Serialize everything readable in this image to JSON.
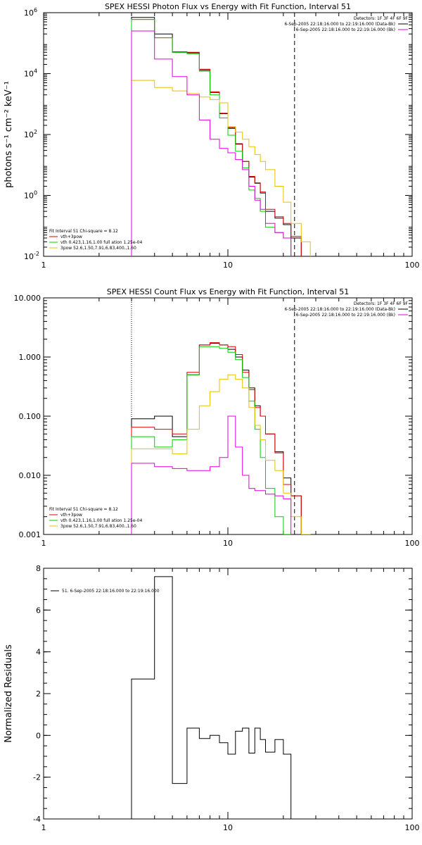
{
  "chart_data": [
    {
      "type": "line",
      "title": "SPEX HESSI Photon Flux vs Energy with Fit Function, Interval 51",
      "xlabel": "",
      "ylabel": "photons s⁻¹ cm⁻² keV⁻¹",
      "x_scale": "log",
      "y_scale": "log",
      "xlim": [
        1,
        100
      ],
      "ylim": [
        0.01,
        1000000
      ],
      "x_ticks": [
        {
          "v": 1,
          "label": "1"
        },
        {
          "v": 10,
          "label": "10"
        },
        {
          "v": 100,
          "label": "100"
        }
      ],
      "y_ticks": [
        {
          "v": 0.01,
          "label": "10",
          "sup": "-2"
        },
        {
          "v": 1,
          "label": "10",
          "sup": "0"
        },
        {
          "v": 100,
          "label": "10",
          "sup": "2"
        },
        {
          "v": 10000,
          "label": "10",
          "sup": "4"
        },
        {
          "v": 1000000,
          "label": "10",
          "sup": "6"
        }
      ],
      "vlines": [
        {
          "x": 3.0,
          "style": "dotted",
          "color": "#000000"
        },
        {
          "x": 23.0,
          "style": "dashed",
          "color": "#000000"
        }
      ],
      "series": [
        {
          "name": "data",
          "color": "#000000",
          "edges": [
            3,
            4,
            5,
            6,
            7,
            8,
            9,
            10,
            11,
            12,
            13,
            14,
            15,
            16,
            18,
            20,
            22,
            25
          ],
          "values": [
            700000,
            200000,
            50000,
            48000,
            13000,
            2400,
            480,
            160,
            48,
            13,
            4,
            2.5,
            1.2,
            0.3,
            0.18,
            0.11,
            0.04
          ]
        },
        {
          "name": "vth+3pow",
          "color": "#e00000",
          "edges": [
            3,
            4,
            5,
            6,
            7,
            8,
            9,
            10,
            11,
            12,
            13,
            14,
            15,
            16,
            18,
            20,
            22,
            25
          ],
          "values": [
            600000,
            150000,
            52000,
            50000,
            14000,
            2500,
            500,
            170,
            50,
            13,
            4.2,
            2.6,
            1.3,
            0.35,
            0.2,
            0.12,
            0.045
          ]
        },
        {
          "name": "vth",
          "color": "#00d000",
          "edges": [
            3,
            4,
            5,
            6,
            7,
            8,
            9,
            10,
            11,
            12,
            13,
            14,
            15,
            16,
            18,
            20,
            22
          ],
          "values": [
            600000,
            150000,
            50000,
            45000,
            12000,
            2000,
            350,
            95,
            28,
            8,
            1.5,
            0.8,
            0.3,
            0.09,
            0.06,
            0.04
          ]
        },
        {
          "name": "3pow",
          "color": "#e8c000",
          "edges": [
            3,
            4,
            5,
            6,
            7,
            8,
            9,
            10,
            11,
            12,
            13,
            14,
            15,
            16,
            18,
            20,
            22,
            25,
            28
          ],
          "values": [
            6000,
            3500,
            2700,
            2200,
            1700,
            1400,
            1100,
            180,
            120,
            70,
            40,
            22,
            13,
            7,
            2,
            0.6,
            0.12,
            0.03
          ]
        },
        {
          "name": "pow",
          "color": "#e000e0",
          "edges": [
            3,
            4,
            5,
            6,
            7,
            8,
            9,
            10,
            11,
            12,
            13,
            14,
            15,
            16,
            18,
            20,
            22
          ],
          "values": [
            250000,
            30000,
            8000,
            2000,
            300,
            70,
            35,
            25,
            15,
            7,
            2,
            0.7,
            0.35,
            0.12,
            0.06,
            0.04
          ]
        }
      ],
      "legend_right": {
        "header": "Detectors: 1F 3F 4F 6F 9F",
        "entries": [
          {
            "text": "6-Sep-2005 22:18:16.000 to 22:19:16.000 (Data-Bk)",
            "color": "#000000"
          },
          {
            "text": "6-Sep-2005 22:18:16.000 to 22:19:16.000 (Bk)",
            "color": "#e000e0"
          }
        ]
      },
      "legend_left": {
        "header": "Fit Interval 51    Chi-square = 8.12",
        "entries": [
          {
            "text": "vth+3pow",
            "color": "#e00000"
          },
          {
            "text": "vth 0.423,1.16,1.00  full ation 1.25e-04",
            "color": "#00d000"
          },
          {
            "text": "3pow 52.6,1.50,7.91,6.83,400.,1.60",
            "color": "#e8c000"
          }
        ]
      }
    },
    {
      "type": "line",
      "title": "SPEX HESSI Count Flux vs Energy with Fit Function, Interval 51",
      "xlabel": "",
      "ylabel": "",
      "x_scale": "log",
      "y_scale": "log",
      "xlim": [
        1,
        100
      ],
      "ylim": [
        0.001,
        10
      ],
      "x_ticks": [
        {
          "v": 1,
          "label": "1"
        },
        {
          "v": 10,
          "label": "10"
        },
        {
          "v": 100,
          "label": "100"
        }
      ],
      "y_ticks": [
        {
          "v": 0.001,
          "label": "0.001"
        },
        {
          "v": 0.01,
          "label": "0.010"
        },
        {
          "v": 0.1,
          "label": "0.100"
        },
        {
          "v": 1,
          "label": "1.000"
        },
        {
          "v": 10,
          "label": "10.000"
        }
      ],
      "vlines": [
        {
          "x": 3.0,
          "style": "dotted",
          "color": "#000000"
        },
        {
          "x": 23.0,
          "style": "dashed",
          "color": "#000000"
        }
      ],
      "series": [
        {
          "name": "data",
          "color": "#000000",
          "edges": [
            3,
            4,
            5,
            6,
            7,
            8,
            9,
            10,
            11,
            12,
            13,
            14,
            15,
            16,
            18,
            20,
            22,
            25
          ],
          "values": [
            0.09,
            0.1,
            0.045,
            0.5,
            1.6,
            1.7,
            1.6,
            1.35,
            1.0,
            0.6,
            0.3,
            0.15,
            0.1,
            0.05,
            0.025,
            0.009,
            0.0045
          ]
        },
        {
          "name": "vth+3pow",
          "color": "#e00000",
          "edges": [
            3,
            4,
            5,
            6,
            7,
            8,
            9,
            10,
            11,
            12,
            13,
            14,
            15,
            16,
            18,
            20,
            22,
            25
          ],
          "values": [
            0.065,
            0.06,
            0.05,
            0.55,
            1.6,
            1.75,
            1.6,
            1.5,
            1.1,
            0.55,
            0.28,
            0.14,
            0.1,
            0.05,
            0.024,
            0.007,
            0.0045
          ]
        },
        {
          "name": "vth",
          "color": "#00d000",
          "edges": [
            3,
            4,
            5,
            6,
            7,
            8,
            9,
            10,
            11,
            12,
            13,
            14,
            15,
            16,
            18,
            20,
            22
          ],
          "values": [
            0.045,
            0.03,
            0.04,
            0.5,
            1.5,
            1.5,
            1.4,
            1.2,
            0.9,
            0.45,
            0.18,
            0.06,
            0.02,
            0.006,
            0.002,
            0.0002
          ]
        },
        {
          "name": "3pow",
          "color": "#e8c000",
          "edges": [
            3,
            4,
            5,
            6,
            7,
            8,
            9,
            10,
            11,
            12,
            13,
            14,
            15,
            16,
            18,
            20,
            22,
            25,
            28
          ],
          "values": [
            0.028,
            0.028,
            0.023,
            0.06,
            0.15,
            0.26,
            0.42,
            0.5,
            0.42,
            0.3,
            0.14,
            0.07,
            0.04,
            0.018,
            0.012,
            0.005,
            0.002,
            0.0005
          ]
        },
        {
          "name": "pow",
          "color": "#e000e0",
          "edges": [
            3,
            4,
            5,
            6,
            7,
            8,
            9,
            10,
            11,
            12,
            13,
            14,
            15,
            16,
            18,
            20,
            22
          ],
          "values": [
            0.016,
            0.014,
            0.013,
            0.012,
            0.012,
            0.014,
            0.02,
            0.1,
            0.03,
            0.01,
            0.006,
            0.0055,
            0.0055,
            0.0048,
            0.0045,
            0.004
          ]
        }
      ],
      "legend_right": {
        "header": "Detectors: 1F 3F 4F 6F 9F",
        "entries": [
          {
            "text": "6-Sep-2005 22:18:16.000 to 22:19:16.000 (Data-Bk)",
            "color": "#000000"
          },
          {
            "text": "6-Sep-2005 22:18:16.000 to 22:19:16.000 (Bk)",
            "color": "#e000e0"
          }
        ]
      },
      "legend_left": {
        "header": "Fit Interval 51    Chi-square = 8.12",
        "entries": [
          {
            "text": "vth+3pow",
            "color": "#e00000"
          },
          {
            "text": "vth 0.423,1.16,1.00  full ation 1.25e-04",
            "color": "#00d000"
          },
          {
            "text": "3pow 52.6,1.50,7.91,6.83,400.,1.60",
            "color": "#e8c000"
          }
        ]
      }
    },
    {
      "type": "line",
      "title": "",
      "xlabel": "",
      "ylabel": "Normalized Residuals",
      "x_scale": "log",
      "y_scale": "linear",
      "xlim": [
        1,
        100
      ],
      "ylim": [
        -4,
        8
      ],
      "x_ticks": [
        {
          "v": 1,
          "label": "1"
        },
        {
          "v": 10,
          "label": "10"
        },
        {
          "v": 100,
          "label": "100"
        }
      ],
      "y_ticks": [
        {
          "v": -4,
          "label": "-4"
        },
        {
          "v": -2,
          "label": "-2"
        },
        {
          "v": 0,
          "label": "0"
        },
        {
          "v": 2,
          "label": "2"
        },
        {
          "v": 4,
          "label": "4"
        },
        {
          "v": 6,
          "label": "6"
        },
        {
          "v": 8,
          "label": "8"
        }
      ],
      "vlines": [],
      "series": [
        {
          "name": "51.",
          "color": "#000000",
          "edges": [
            3,
            4,
            5,
            6,
            7,
            8,
            9,
            10,
            11,
            12,
            13,
            14,
            15,
            16,
            18,
            20,
            22
          ],
          "values": [
            2.7,
            7.6,
            -2.3,
            0.35,
            -0.15,
            0.0,
            -0.35,
            -0.9,
            0.2,
            0.35,
            -0.85,
            0.35,
            -0.2,
            -0.8,
            -0.2,
            -0.9
          ]
        }
      ],
      "legend_right": null,
      "legend_left": null,
      "legend_top": {
        "entries": [
          {
            "text": "51.  6-Sep-2005 22:18:16.000 to 22:19:16.000",
            "color": "#000000"
          }
        ]
      }
    }
  ]
}
